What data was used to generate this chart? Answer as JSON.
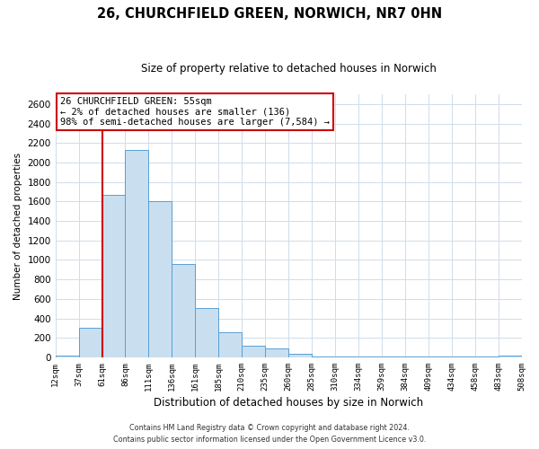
{
  "title": "26, CHURCHFIELD GREEN, NORWICH, NR7 0HN",
  "subtitle": "Size of property relative to detached houses in Norwich",
  "xlabel": "Distribution of detached houses by size in Norwich",
  "ylabel": "Number of detached properties",
  "bar_heights": [
    20,
    300,
    1670,
    2130,
    1600,
    960,
    510,
    255,
    120,
    95,
    35,
    5,
    5,
    5,
    5,
    5,
    5,
    5,
    5,
    20
  ],
  "bar_labels": [
    "12sqm",
    "37sqm",
    "61sqm",
    "86sqm",
    "111sqm",
    "136sqm",
    "161sqm",
    "185sqm",
    "210sqm",
    "235sqm",
    "260sqm",
    "285sqm",
    "310sqm",
    "334sqm",
    "359sqm",
    "384sqm",
    "409sqm",
    "434sqm",
    "458sqm",
    "483sqm",
    "508sqm"
  ],
  "bar_color": "#c9dff0",
  "bar_edge_color": "#5a9fd4",
  "vline_x": 2,
  "vline_color": "#cc0000",
  "ylim": [
    0,
    2700
  ],
  "yticks": [
    0,
    200,
    400,
    600,
    800,
    1000,
    1200,
    1400,
    1600,
    1800,
    2000,
    2200,
    2400,
    2600
  ],
  "annotation_title": "26 CHURCHFIELD GREEN: 55sqm",
  "annotation_line1": "← 2% of detached houses are smaller (136)",
  "annotation_line2": "98% of semi-detached houses are larger (7,584) →",
  "annotation_box_color": "#ffffff",
  "annotation_box_edge": "#cc0000",
  "footer1": "Contains HM Land Registry data © Crown copyright and database right 2024.",
  "footer2": "Contains public sector information licensed under the Open Government Licence v3.0.",
  "background_color": "#ffffff",
  "grid_color": "#d0dcea"
}
